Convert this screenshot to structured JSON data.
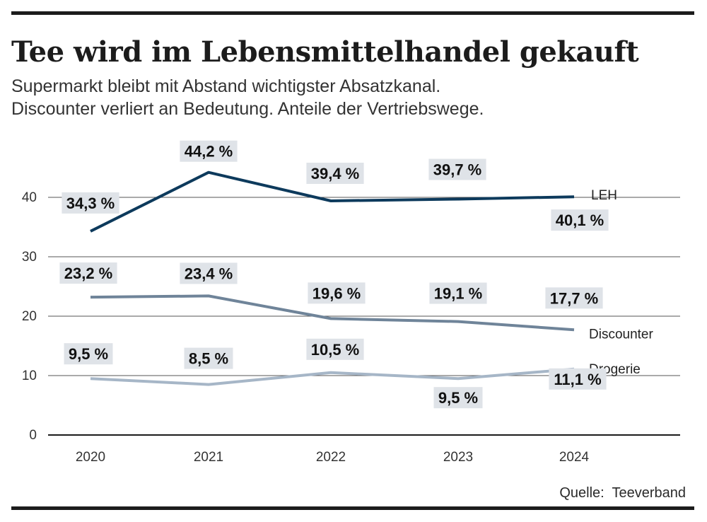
{
  "title": "Tee wird im Lebensmittelhandel gekauft",
  "subtitle_lines": [
    "Supermarkt bleibt mit Abstand wichtigster Absatzkanal.",
    "Discounter verliert an Bedeutung. Anteile der Vertriebswege."
  ],
  "source": "Quelle:  Teeverband",
  "colors": {
    "LEH": "#0d3a5c",
    "Discounter": "#6f8499",
    "Drogerie": "#a6b6c7",
    "label_bg": "#dfe3e8",
    "gridline": "#555555"
  },
  "chart_data": {
    "type": "line",
    "categories": [
      "2020",
      "2021",
      "2022",
      "2023",
      "2024"
    ],
    "ylim": [
      0,
      45
    ],
    "yticks": [
      0,
      10,
      20,
      30,
      40
    ],
    "grid": true,
    "series": [
      {
        "name": "LEH",
        "values": [
          34.3,
          44.2,
          39.4,
          39.7,
          40.1
        ],
        "labels": [
          "34,3 %",
          "44,2 %",
          "39,4 %",
          "39,7 %",
          "40,1 %"
        ]
      },
      {
        "name": "Discounter",
        "values": [
          23.2,
          23.4,
          19.6,
          19.1,
          17.7
        ],
        "labels": [
          "23,2 %",
          "23,4 %",
          "19,6 %",
          "19,1 %",
          "17,7 %"
        ]
      },
      {
        "name": "Drogerie",
        "values": [
          9.5,
          8.5,
          10.5,
          9.5,
          11.1
        ],
        "labels": [
          "9,5 %",
          "8,5 %",
          "10,5 %",
          "9,5 %",
          "11,1 %"
        ]
      }
    ]
  }
}
